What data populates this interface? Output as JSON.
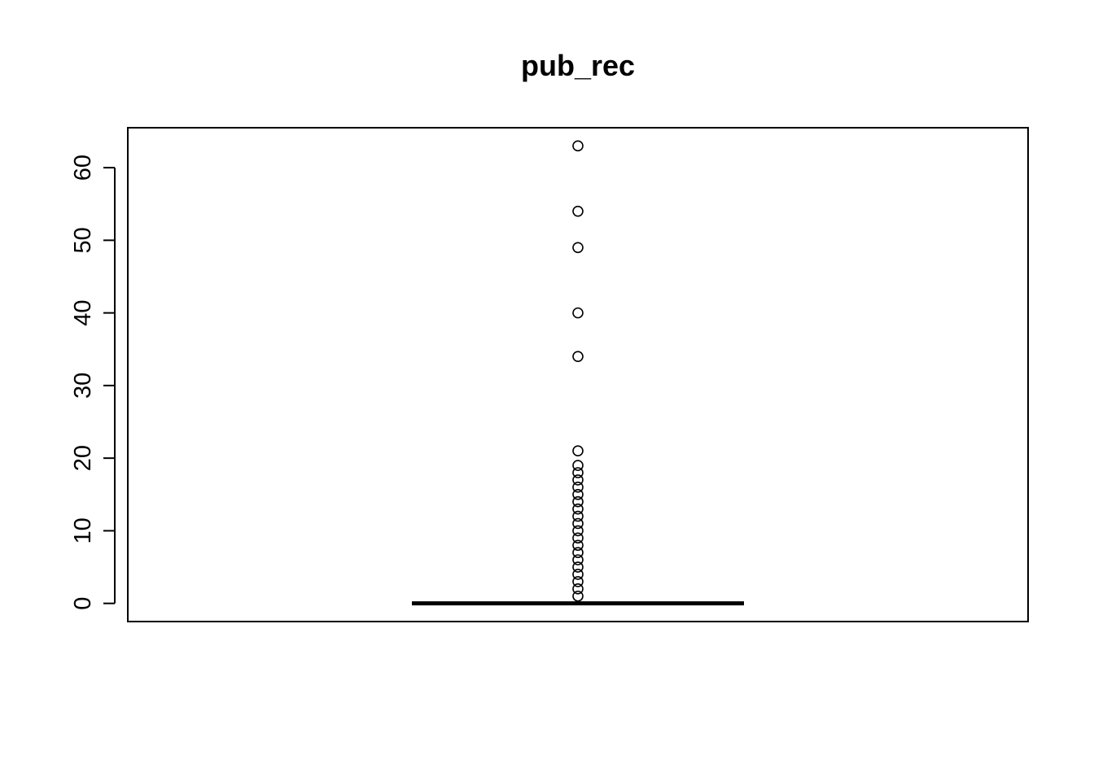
{
  "chart_data": {
    "type": "boxplot",
    "title": "pub_rec",
    "xlabel": "",
    "ylabel": "",
    "ylim": [
      -2.5,
      65.5
    ],
    "y_ticks": [
      0,
      10,
      20,
      30,
      40,
      50,
      60
    ],
    "y_tick_labels": [
      "0",
      "10",
      "20",
      "30",
      "40",
      "50",
      "60"
    ],
    "box": {
      "min": 0,
      "q1": 0,
      "median": 0,
      "q3": 0,
      "max": 0
    },
    "outliers": [
      1,
      2,
      3,
      4,
      5,
      6,
      7,
      8,
      9,
      10,
      11,
      12,
      13,
      14,
      15,
      16,
      17,
      18,
      19,
      21,
      34,
      40,
      49,
      54,
      63
    ],
    "grid": false,
    "legend": "none"
  }
}
